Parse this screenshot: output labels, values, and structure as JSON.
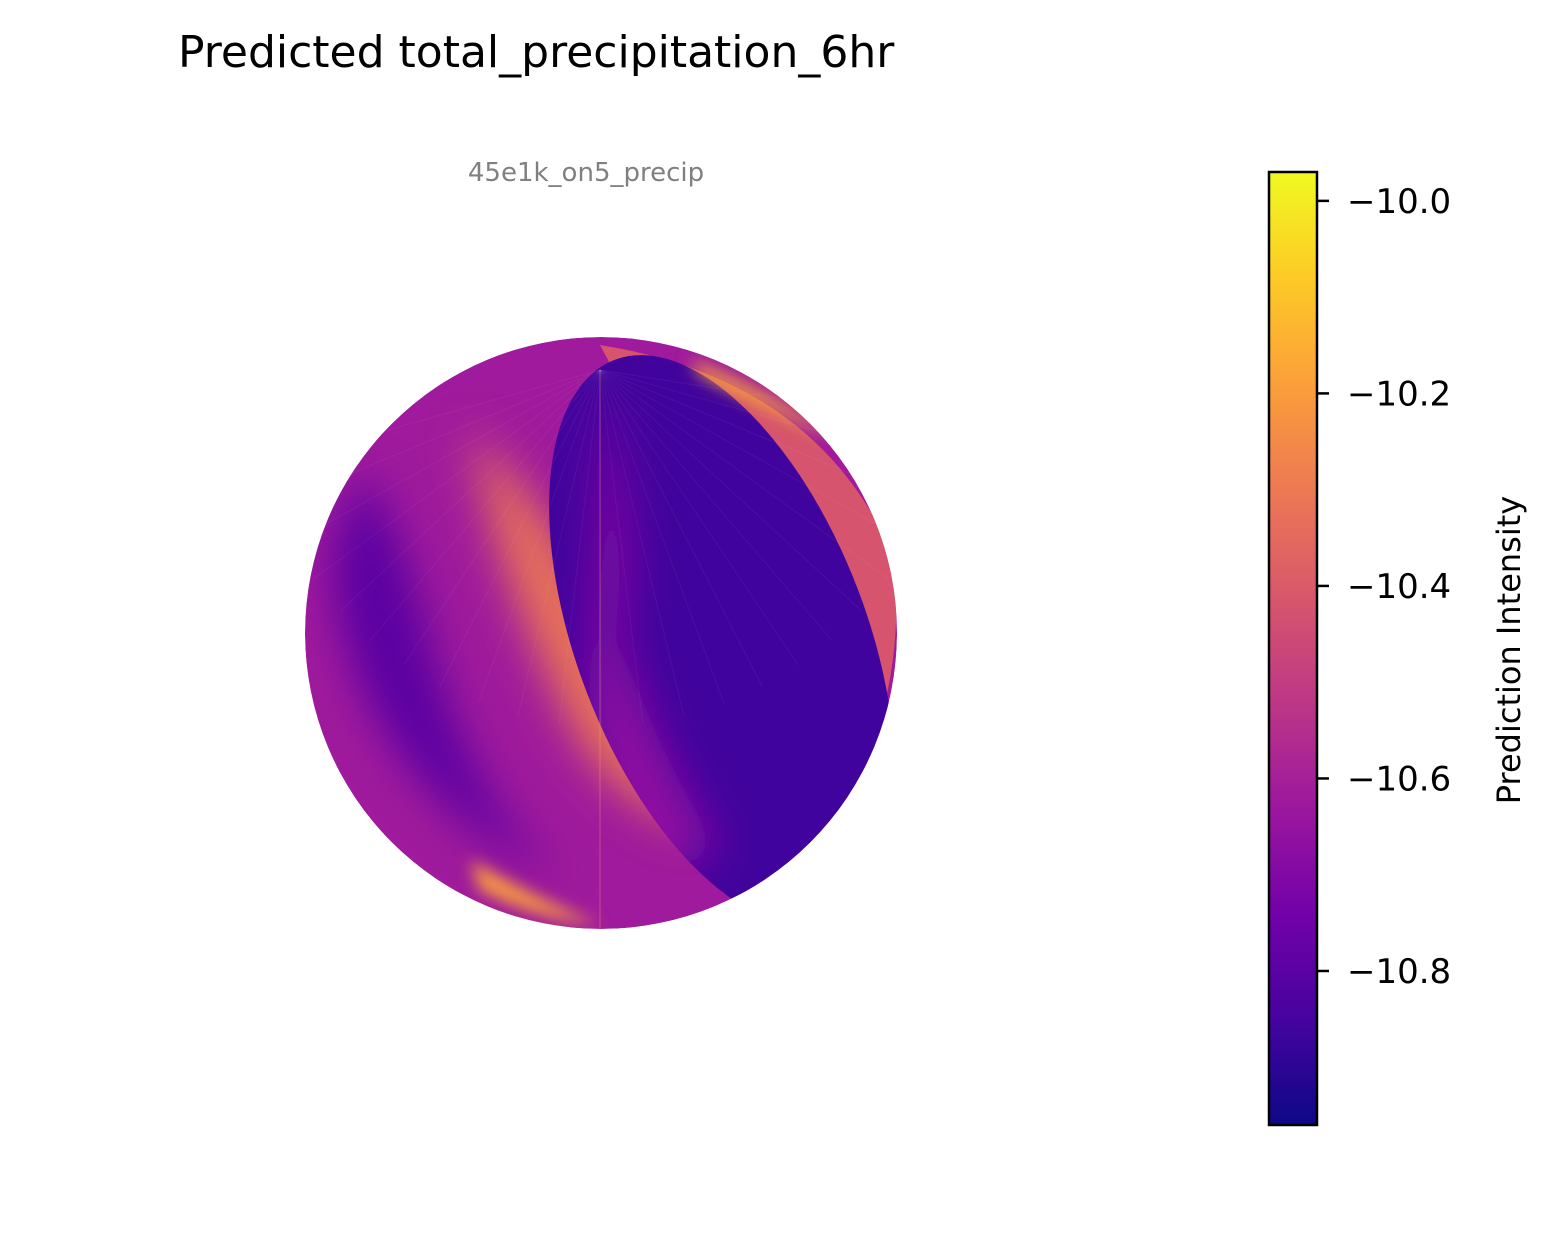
{
  "chart_data": {
    "type": "heatmap",
    "projection": "orthographic globe",
    "title": "Predicted total_precipitation_6hr",
    "subtitle": "45e1k_on5_precip",
    "colormap": "plasma",
    "colorbar": {
      "label": "Prediction Intensity",
      "vmin": -10.96,
      "vmax": -9.97,
      "ticks": [
        -10.0,
        -10.2,
        -10.4,
        -10.6,
        -10.8
      ],
      "tick_labels": [
        "−10.0",
        "−10.2",
        "−10.4",
        "−10.6",
        "−10.8"
      ],
      "placement": "right"
    },
    "field_regions": [
      {
        "region": "globe background",
        "value": -10.62
      },
      {
        "region": "eastern limb crescent",
        "value": -10.42
      },
      {
        "region": "large eastern ellipse",
        "value": -10.86
      },
      {
        "region": "central diagonal band",
        "value": -10.32
      },
      {
        "region": "western dark band",
        "value": -10.8
      },
      {
        "region": "southern rim streak",
        "value": -10.2
      },
      {
        "region": "northeast rim streak",
        "value": -10.15
      }
    ],
    "colors": {
      "stops": [
        "#0d0887",
        "#46039f",
        "#7201a8",
        "#9c179e",
        "#bd3786",
        "#d8576b",
        "#ed7953",
        "#fb9f3a",
        "#fdca26",
        "#f0f921"
      ]
    }
  }
}
